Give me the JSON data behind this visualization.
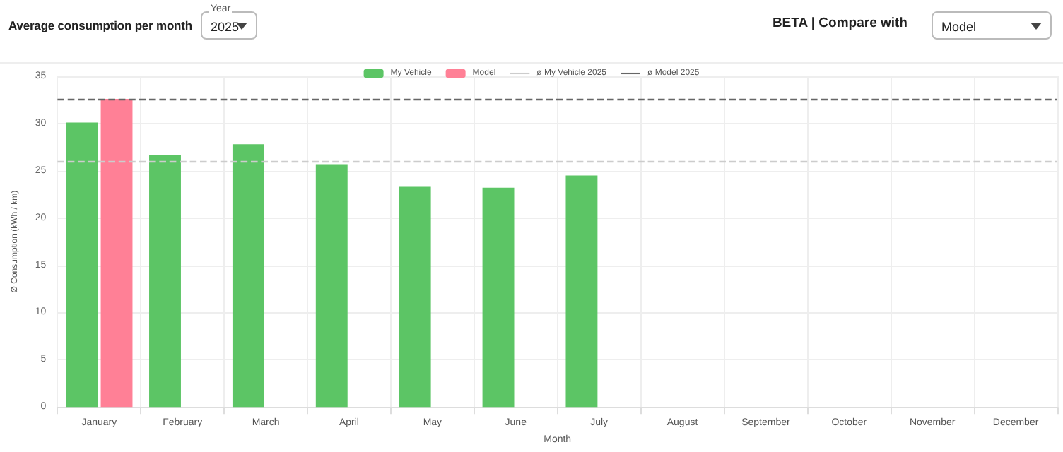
{
  "chart_data": {
    "type": "bar",
    "title": "Average consumption per month",
    "annotations": [
      "Year",
      "2025",
      "BETA | Compare with",
      "Model"
    ],
    "xlabel": "Month",
    "ylabel": "Ø Consumption (kWh / km)",
    "categories": [
      "January",
      "February",
      "March",
      "April",
      "May",
      "June",
      "July",
      "August",
      "September",
      "October",
      "November",
      "December"
    ],
    "series": [
      {
        "name": "My Vehicle",
        "color": "#5cc565",
        "values": [
          30.1,
          26.7,
          27.8,
          25.7,
          23.3,
          23.2,
          24.5,
          null,
          null,
          null,
          null,
          null
        ]
      },
      {
        "name": "Model",
        "color": "#ff8096",
        "values": [
          32.6,
          null,
          null,
          null,
          null,
          null,
          null,
          null,
          null,
          null,
          null,
          null
        ]
      }
    ],
    "ref_lines": [
      {
        "axis": "y",
        "value": 26.0,
        "label": "ø My Vehicle 2025",
        "color": "#cccccc",
        "line_style": "dashed"
      },
      {
        "axis": "y",
        "value": 32.6,
        "label": "ø Model 2025",
        "color": "#666666",
        "line_style": "dashed"
      }
    ],
    "ylim": [
      0,
      35
    ],
    "yticks": [
      0,
      5,
      10,
      15,
      20,
      25,
      30,
      35
    ],
    "grid": true,
    "legend": "top"
  }
}
